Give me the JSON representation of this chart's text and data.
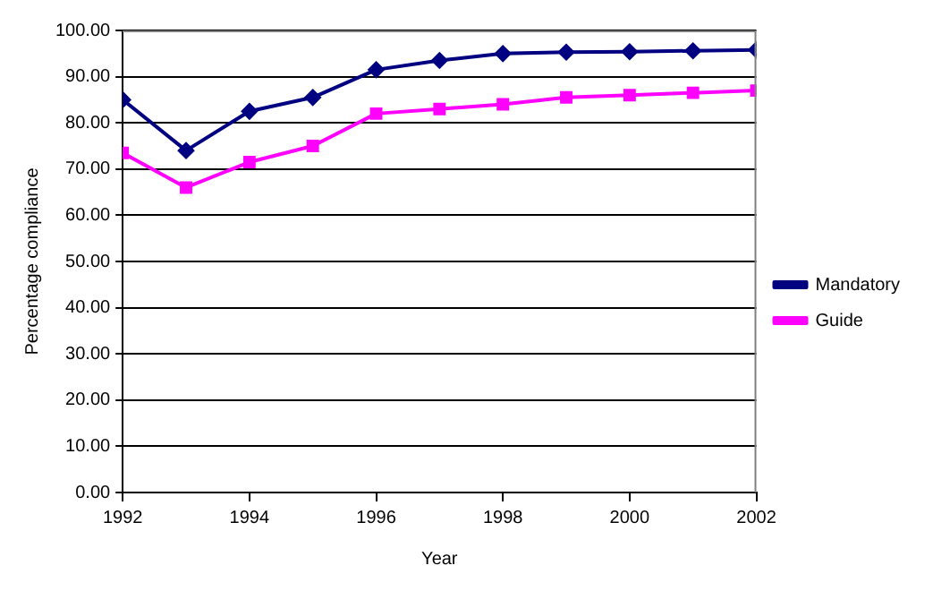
{
  "chart_data": {
    "type": "line",
    "xlabel": "Year",
    "ylabel": "Percentage compliance",
    "x": [
      1992,
      1993,
      1994,
      1995,
      1996,
      1997,
      1998,
      1999,
      2000,
      2001,
      2002
    ],
    "series": [
      {
        "name": "Mandatory",
        "color": "#000080",
        "marker": "diamond",
        "values": [
          85,
          74,
          82.5,
          85.5,
          91.5,
          93.5,
          95,
          95.3,
          95.4,
          95.6,
          95.8
        ]
      },
      {
        "name": "Guide",
        "color": "#ff00ff",
        "marker": "square",
        "values": [
          73.5,
          66,
          71.5,
          75,
          82,
          83,
          84,
          85.5,
          86,
          86.5,
          87
        ]
      }
    ],
    "xlim": [
      1992,
      2002
    ],
    "xticks": [
      1992,
      1994,
      1996,
      1998,
      2000,
      2002
    ],
    "ylim": [
      0,
      100
    ],
    "yticks": [
      {
        "value": 0,
        "label": "0.00"
      },
      {
        "value": 10,
        "label": "10.00"
      },
      {
        "value": 20,
        "label": "20.00"
      },
      {
        "value": 30,
        "label": "30.00"
      },
      {
        "value": 40,
        "label": "40.00"
      },
      {
        "value": 50,
        "label": "50.00"
      },
      {
        "value": 60,
        "label": "60.00"
      },
      {
        "value": 70,
        "label": "70.00"
      },
      {
        "value": 80,
        "label": "80.00"
      },
      {
        "value": 90,
        "label": "90.00"
      },
      {
        "value": 100,
        "label": "100.00"
      }
    ],
    "grid": "y",
    "legend": "right",
    "line_style": "solid"
  }
}
